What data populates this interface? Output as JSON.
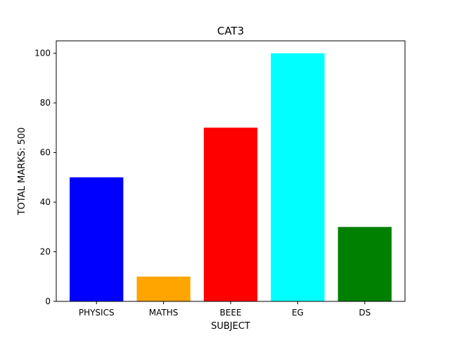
{
  "chart_data": {
    "type": "bar",
    "title": "CAT3",
    "xlabel": "SUBJECT",
    "ylabel": "TOTAL MARKS: 500",
    "categories": [
      "PHYSICS",
      "MATHS",
      "BEEE",
      "EG",
      "DS"
    ],
    "values": [
      50,
      10,
      70,
      100,
      30
    ],
    "colors": [
      "#0000ff",
      "#ffa500",
      "#ff0000",
      "#00ffff",
      "#008000"
    ],
    "yticks": [
      0,
      20,
      40,
      60,
      80,
      100
    ],
    "ylim": [
      0,
      105
    ],
    "grid": false,
    "legend": "none"
  }
}
